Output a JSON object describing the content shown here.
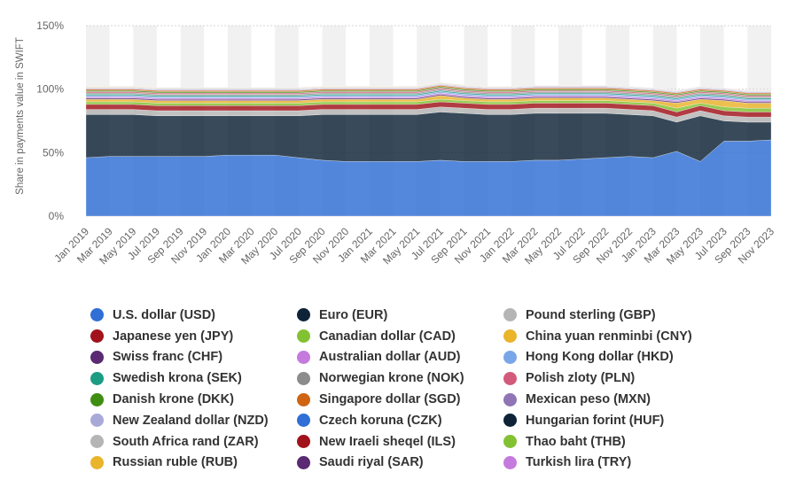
{
  "chart_data": {
    "type": "area",
    "stacked": true,
    "ylabel": "Share in payments value in SWIFT",
    "yticks": [
      "0%",
      "50%",
      "100%",
      "150%"
    ],
    "ylim": [
      0,
      150
    ],
    "grid": true,
    "legend_position": "bottom",
    "x": [
      "Jan 2019",
      "Mar 2019",
      "May 2019",
      "Jul 2019",
      "Sep 2019",
      "Nov 2019",
      "Jan 2020",
      "Mar 2020",
      "May 2020",
      "Jul 2020",
      "Sep 2020",
      "Nov 2020",
      "Jan 2021",
      "Mar 2021",
      "May 2021",
      "Jul 2021",
      "Sep 2021",
      "Nov 2021",
      "Jan 2022",
      "Mar 2022",
      "May 2022",
      "Jul 2022",
      "Sep 2022",
      "Nov 2022",
      "Jan 2023",
      "Mar 2023",
      "May 2023",
      "Jul 2023",
      "Sep 2023",
      "Nov 2023"
    ],
    "series": [
      {
        "name": "U.S. dollar (USD)",
        "color": "#2f6fd6",
        "values": [
          46,
          47,
          47,
          47,
          47,
          47,
          48,
          48,
          48,
          46,
          44,
          43,
          43,
          43,
          43,
          44,
          43,
          43,
          43,
          44,
          44,
          45,
          46,
          47,
          46,
          51,
          43,
          59,
          59,
          60
        ]
      },
      {
        "name": "Euro (EUR)",
        "color": "#0e2337",
        "values": [
          34,
          33,
          33,
          32,
          32,
          32,
          31,
          31,
          31,
          33,
          36,
          37,
          37,
          37,
          37,
          38,
          38,
          37,
          37,
          37,
          37,
          36,
          35,
          33,
          33,
          23,
          36,
          16,
          15,
          14
        ]
      },
      {
        "name": "Pound sterling (GBP)",
        "color": "#b5b5b5",
        "values": [
          4,
          4,
          4,
          4,
          4,
          4,
          4,
          4,
          4,
          4,
          4,
          4,
          4,
          4,
          4,
          4,
          4,
          4,
          4,
          4,
          4,
          4,
          4,
          4,
          4,
          4,
          4,
          4,
          4,
          4
        ]
      },
      {
        "name": "Japanese yen (JPY)",
        "color": "#a1121a",
        "values": [
          4,
          4,
          4,
          4,
          4,
          4,
          4,
          4,
          4,
          4,
          4,
          4,
          4,
          4,
          4,
          4,
          4,
          4,
          4,
          4,
          4,
          4,
          4,
          4,
          4,
          4,
          4,
          4,
          4,
          4
        ]
      },
      {
        "name": "Canadian dollar (CAD)",
        "color": "#82c232",
        "values": [
          2,
          2,
          2,
          2,
          2,
          2,
          2,
          2,
          2,
          2,
          2,
          2,
          2,
          2,
          2,
          2,
          2,
          2,
          2,
          2,
          2,
          2,
          2,
          2,
          2,
          3,
          2,
          3,
          3,
          3
        ]
      },
      {
        "name": "China yuan renminbi (CNY)",
        "color": "#eab42b",
        "values": [
          2,
          2,
          2,
          2,
          2,
          2,
          2,
          2,
          2,
          2,
          2,
          2,
          2,
          2,
          2,
          3,
          2,
          2,
          2,
          2,
          2,
          2,
          2,
          2,
          2,
          4,
          3,
          5,
          4,
          4
        ]
      },
      {
        "name": "Swiss franc (CHF)",
        "color": "#5a2a72",
        "values": [
          1,
          1,
          1,
          1,
          1,
          1,
          1,
          1,
          1,
          1,
          1,
          1,
          1,
          1,
          1,
          1,
          1,
          1,
          1,
          1,
          1,
          1,
          1,
          1,
          1,
          1,
          1,
          1,
          1,
          1
        ]
      },
      {
        "name": "Australian dollar (AUD)",
        "color": "#c57ade",
        "values": [
          1,
          1,
          1,
          1,
          1,
          1,
          1,
          1,
          1,
          1,
          1,
          1,
          1,
          1,
          1,
          1,
          1,
          1,
          1,
          1,
          1,
          1,
          1,
          1,
          1,
          1,
          1,
          1,
          1,
          1
        ]
      },
      {
        "name": "Hong Kong dollar (HKD)",
        "color": "#79a6e8",
        "values": [
          1,
          1,
          1,
          1,
          1,
          1,
          1,
          1,
          1,
          1,
          1,
          1,
          1,
          1,
          1,
          1,
          1,
          1,
          1,
          1,
          1,
          1,
          1,
          1,
          1,
          1,
          1,
          1,
          1,
          1
        ]
      },
      {
        "name": "Swedish krona (SEK)",
        "color": "#1c9c84",
        "values": [
          1,
          1,
          1,
          1,
          1,
          1,
          1,
          1,
          1,
          1,
          1,
          1,
          1,
          1,
          1,
          1,
          1,
          1,
          1,
          1,
          1,
          1,
          1,
          1,
          1,
          1,
          1,
          1,
          1,
          1
        ]
      },
      {
        "name": "Norwegian krone (NOK)",
        "color": "#8c8c8c",
        "values": [
          1,
          1,
          1,
          1,
          1,
          1,
          1,
          1,
          1,
          1,
          1,
          1,
          1,
          1,
          1,
          1,
          1,
          1,
          1,
          1,
          1,
          1,
          1,
          1,
          1,
          1,
          1,
          1,
          1,
          1
        ]
      },
      {
        "name": "Polish zloty (PLN)",
        "color": "#d35a7b",
        "values": [
          1,
          1,
          1,
          1,
          1,
          1,
          1,
          1,
          1,
          1,
          1,
          1,
          1,
          1,
          1,
          1,
          1,
          1,
          1,
          1,
          1,
          1,
          1,
          1,
          1,
          1,
          1,
          1,
          1,
          1
        ]
      },
      {
        "name": "Danish krone (DKK)",
        "color": "#3f8e12",
        "values": [
          1,
          1,
          1,
          1,
          1,
          1,
          1,
          1,
          1,
          1,
          1,
          1,
          1,
          1,
          1,
          1,
          1,
          1,
          1,
          1,
          1,
          1,
          1,
          1,
          1,
          1,
          1,
          1,
          1,
          1
        ]
      },
      {
        "name": "Singapore dollar (SGD)",
        "color": "#cf6412",
        "values": [
          1,
          1,
          1,
          1,
          1,
          1,
          1,
          1,
          1,
          1,
          1,
          1,
          1,
          1,
          1,
          1,
          1,
          1,
          1,
          1,
          1,
          1,
          1,
          1,
          1,
          1,
          1,
          1,
          1,
          1
        ]
      },
      {
        "name": "Mexican peso (MXN)",
        "color": "#8f75b6",
        "values": [
          0.5,
          0.5,
          0.5,
          0.5,
          0.5,
          0.5,
          0.5,
          0.5,
          0.5,
          0.5,
          0.5,
          0.5,
          0.5,
          0.5,
          0.5,
          0.5,
          0.5,
          0.5,
          0.5,
          0.5,
          0.5,
          0.5,
          0.5,
          0.5,
          0.5,
          0.5,
          0.5,
          0.5,
          0.5,
          0.5
        ]
      },
      {
        "name": "New Zealand dollar (NZD)",
        "color": "#a9a9d9",
        "values": [
          0.3,
          0.3,
          0.3,
          0.3,
          0.3,
          0.3,
          0.3,
          0.3,
          0.3,
          0.3,
          0.3,
          0.3,
          0.3,
          0.3,
          0.3,
          0.3,
          0.3,
          0.3,
          0.3,
          0.3,
          0.3,
          0.3,
          0.3,
          0.3,
          0.3,
          0.3,
          0.3,
          0.3,
          0.3,
          0.3
        ]
      },
      {
        "name": "Czech koruna (CZK)",
        "color": "#2f6fd6",
        "values": [
          0.2,
          0.2,
          0.2,
          0.2,
          0.2,
          0.2,
          0.2,
          0.2,
          0.2,
          0.2,
          0.2,
          0.2,
          0.2,
          0.2,
          0.2,
          0.2,
          0.2,
          0.2,
          0.2,
          0.2,
          0.2,
          0.2,
          0.2,
          0.2,
          0.2,
          0.2,
          0.2,
          0.2,
          0.2,
          0.2
        ]
      },
      {
        "name": "Hungarian forint (HUF)",
        "color": "#0e2337",
        "values": [
          0.2,
          0.2,
          0.2,
          0.2,
          0.2,
          0.2,
          0.2,
          0.2,
          0.2,
          0.2,
          0.2,
          0.2,
          0.2,
          0.2,
          0.2,
          0.2,
          0.2,
          0.2,
          0.2,
          0.2,
          0.2,
          0.2,
          0.2,
          0.2,
          0.2,
          0.2,
          0.2,
          0.2,
          0.2,
          0.2
        ]
      },
      {
        "name": "South Africa rand (ZAR)",
        "color": "#b5b5b5",
        "values": [
          0.2,
          0.2,
          0.2,
          0.2,
          0.2,
          0.2,
          0.2,
          0.2,
          0.2,
          0.2,
          0.2,
          0.2,
          0.2,
          0.2,
          0.2,
          0.2,
          0.2,
          0.2,
          0.2,
          0.2,
          0.2,
          0.2,
          0.2,
          0.2,
          0.2,
          0.2,
          0.2,
          0.2,
          0.2,
          0.2
        ]
      },
      {
        "name": "New Iraeli sheqel (ILS)",
        "color": "#a1121a",
        "values": [
          0.2,
          0.2,
          0.2,
          0.2,
          0.2,
          0.2,
          0.2,
          0.2,
          0.2,
          0.2,
          0.2,
          0.2,
          0.2,
          0.2,
          0.2,
          0.2,
          0.2,
          0.2,
          0.2,
          0.2,
          0.2,
          0.2,
          0.2,
          0.2,
          0.2,
          0.2,
          0.2,
          0.2,
          0.2,
          0.2
        ]
      },
      {
        "name": "Thao baht (THB)",
        "color": "#82c232",
        "values": [
          0.2,
          0.2,
          0.2,
          0.2,
          0.2,
          0.2,
          0.2,
          0.2,
          0.2,
          0.2,
          0.2,
          0.2,
          0.2,
          0.2,
          0.2,
          0.2,
          0.2,
          0.2,
          0.2,
          0.2,
          0.2,
          0.2,
          0.2,
          0.2,
          0.2,
          0.2,
          0.2,
          0.2,
          0.2,
          0.2
        ]
      },
      {
        "name": "Russian ruble (RUB)",
        "color": "#eab42b",
        "values": [
          0.3,
          0.3,
          0.3,
          0.3,
          0.3,
          0.3,
          0.3,
          0.3,
          0.3,
          0.3,
          0.3,
          0.3,
          0.3,
          0.3,
          0.3,
          0.3,
          0.3,
          0.2,
          0.2,
          0.1,
          0.1,
          0.1,
          0.1,
          0.1,
          0.1,
          0.1,
          0.1,
          0.1,
          0.1,
          0.1
        ]
      },
      {
        "name": "Saudi riyal (SAR)",
        "color": "#5a2a72",
        "values": [
          0.1,
          0.1,
          0.1,
          0.1,
          0.1,
          0.1,
          0.1,
          0.1,
          0.1,
          0.1,
          0.1,
          0.1,
          0.1,
          0.1,
          0.1,
          0.1,
          0.1,
          0.1,
          0.1,
          0.1,
          0.1,
          0.1,
          0.1,
          0.1,
          0.1,
          0.1,
          0.1,
          0.1,
          0.1,
          0.1
        ]
      },
      {
        "name": "Turkish lira (TRY)",
        "color": "#c57ade",
        "values": [
          0.1,
          0.1,
          0.1,
          0.1,
          0.1,
          0.1,
          0.1,
          0.1,
          0.1,
          0.1,
          0.1,
          0.1,
          0.1,
          0.1,
          0.1,
          0.1,
          0.1,
          0.1,
          0.1,
          0.1,
          0.1,
          0.1,
          0.1,
          0.1,
          0.1,
          0.1,
          0.1,
          0.1,
          0.1,
          0.1
        ]
      }
    ]
  }
}
